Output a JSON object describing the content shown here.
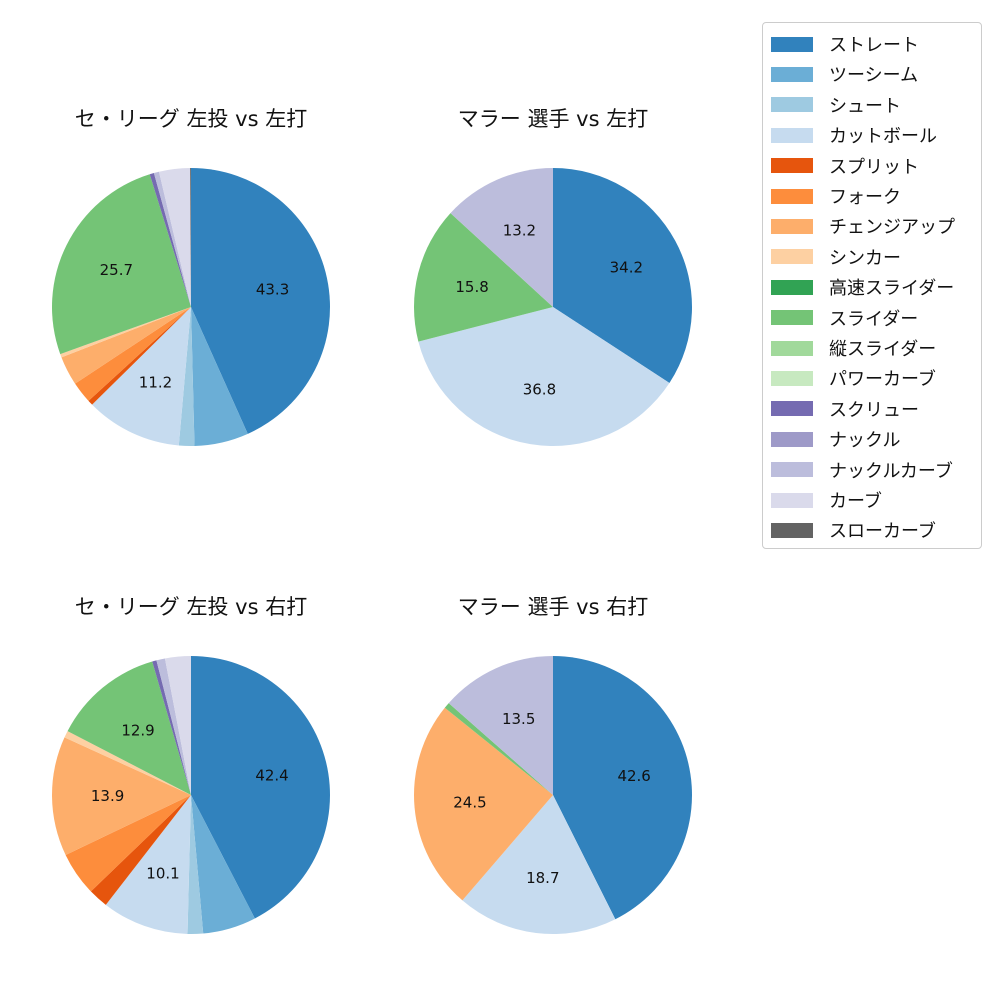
{
  "chart_data": [
    {
      "type": "pie",
      "title": "セ・リーグ 左投 vs 左打",
      "categories": [
        "ストレート",
        "ツーシーム",
        "シュート",
        "カットボール",
        "スプリット",
        "フォーク",
        "チェンジアップ",
        "シンカー",
        "スライダー",
        "スクリュー",
        "ナックルカーブ",
        "カーブ",
        "スローカーブ"
      ],
      "values": [
        43.3,
        6.3,
        1.8,
        11.2,
        0.6,
        2.5,
        3.4,
        0.4,
        25.7,
        0.5,
        0.6,
        3.6,
        0.1
      ],
      "labels_shown": [
        "43.3",
        "11.2",
        "25.7"
      ],
      "center": [
        191,
        307
      ],
      "radius": 139
    },
    {
      "type": "pie",
      "title": "マラー 選手 vs 左打",
      "categories": [
        "ストレート",
        "カットボール",
        "スライダー",
        "ナックルカーブ"
      ],
      "values": [
        34.2,
        36.8,
        15.8,
        13.2
      ],
      "labels_shown": [
        "34.2",
        "36.8",
        "15.8",
        "13.2"
      ],
      "center": [
        553,
        307
      ],
      "radius": 139
    },
    {
      "type": "pie",
      "title": "セ・リーグ 左投 vs 右打",
      "categories": [
        "ストレート",
        "ツーシーム",
        "シュート",
        "カットボール",
        "スプリット",
        "フォーク",
        "チェンジアップ",
        "シンカー",
        "スライダー",
        "スクリュー",
        "ナックルカーブ",
        "カーブ"
      ],
      "values": [
        42.4,
        6.2,
        1.8,
        10.1,
        2.3,
        5.1,
        13.9,
        0.8,
        12.9,
        0.5,
        1.0,
        3.0
      ],
      "labels_shown": [
        "42.4",
        "10.1",
        "13.9",
        "12.9"
      ],
      "center": [
        191,
        795
      ],
      "radius": 139
    },
    {
      "type": "pie",
      "title": "マラー 選手 vs 右打",
      "categories": [
        "ストレート",
        "カットボール",
        "チェンジアップ",
        "スライダー",
        "ナックルカーブ"
      ],
      "values": [
        42.6,
        18.7,
        24.5,
        0.7,
        13.5
      ],
      "labels_shown": [
        "42.6",
        "18.7",
        "24.5",
        "13.5"
      ],
      "center": [
        553,
        795
      ],
      "radius": 139
    }
  ],
  "colors": {
    "ストレート": "#3182bd",
    "ツーシーム": "#6baed6",
    "シュート": "#9ecae1",
    "カットボール": "#c6dbef",
    "スプリット": "#e6550d",
    "フォーク": "#fd8d3c",
    "チェンジアップ": "#fdae6b",
    "シンカー": "#fdd0a2",
    "高速スライダー": "#31a354",
    "スライダー": "#74c476",
    "縦スライダー": "#a1d99b",
    "パワーカーブ": "#c7e9c0",
    "スクリュー": "#756bb1",
    "ナックル": "#9e9ac8",
    "ナックルカーブ": "#bcbddc",
    "カーブ": "#dadaeb",
    "スローカーブ": "#636363"
  },
  "legend": {
    "items": [
      {
        "label": "ストレート",
        "color": "#3182bd"
      },
      {
        "label": "ツーシーム",
        "color": "#6baed6"
      },
      {
        "label": "シュート",
        "color": "#9ecae1"
      },
      {
        "label": "カットボール",
        "color": "#c6dbef"
      },
      {
        "label": "スプリット",
        "color": "#e6550d"
      },
      {
        "label": "フォーク",
        "color": "#fd8d3c"
      },
      {
        "label": "チェンジアップ",
        "color": "#fdae6b"
      },
      {
        "label": "シンカー",
        "color": "#fdd0a2"
      },
      {
        "label": "高速スライダー",
        "color": "#31a354"
      },
      {
        "label": "スライダー",
        "color": "#74c476"
      },
      {
        "label": "縦スライダー",
        "color": "#a1d99b"
      },
      {
        "label": "パワーカーブ",
        "color": "#c7e9c0"
      },
      {
        "label": "スクリュー",
        "color": "#756bb1"
      },
      {
        "label": "ナックル",
        "color": "#9e9ac8"
      },
      {
        "label": "ナックルカーブ",
        "color": "#bcbddc"
      },
      {
        "label": "カーブ",
        "color": "#dadaeb"
      },
      {
        "label": "スローカーブ",
        "color": "#636363"
      }
    ]
  },
  "titles": {
    "t0": "セ・リーグ 左投 vs 左打",
    "t1": "マラー 選手 vs 左打",
    "t2": "セ・リーグ 左投 vs 右打",
    "t3": "マラー 選手 vs 右打"
  }
}
